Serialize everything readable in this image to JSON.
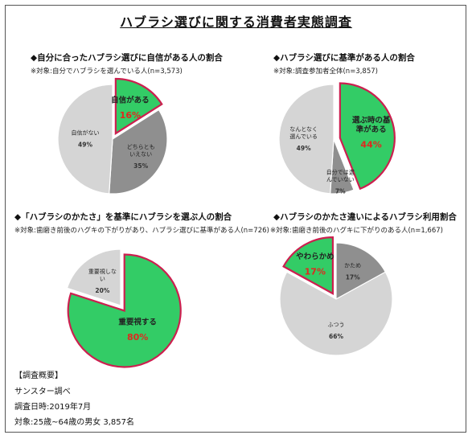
{
  "title": "ハブラシ選びに関する消費者実態調査",
  "colors": {
    "highlight": "#33cc66",
    "highlight_border": "#cc1f4f",
    "dark": "#8f8f8f",
    "light": "#d5d5d5",
    "pct_red": "#e0281f"
  },
  "chart_data": [
    {
      "type": "pie",
      "title": "◆自分に合ったハブラシ選びに自信がある人の割合",
      "subtitle": "※対象:自分でハブラシを選んでいる人(n=3,573)",
      "slices": [
        {
          "label": "自信がある",
          "value": 16,
          "pct": "16%",
          "kind": "highlight"
        },
        {
          "label": "どちらともいえない",
          "value": 35,
          "pct": "35%",
          "kind": "dark"
        },
        {
          "label": "自信がない",
          "value": 49,
          "pct": "49%",
          "kind": "light"
        }
      ]
    },
    {
      "type": "pie",
      "title": "◆ハブラシ選びに基準がある人の割合",
      "subtitle": "※対象:調査参加者全体(n=3,857)",
      "slices": [
        {
          "label": "選ぶ時の基準がある",
          "value": 44,
          "pct": "44%",
          "kind": "highlight"
        },
        {
          "label": "自分では選んでいない",
          "value": 7,
          "pct": "7%",
          "kind": "dark"
        },
        {
          "label": "なんとなく選んでいる",
          "value": 49,
          "pct": "49%",
          "kind": "light"
        }
      ]
    },
    {
      "type": "pie",
      "title": "◆「ハブラシのかたさ」を基準にハブラシを選ぶ人の割合",
      "subtitle": "※対象:歯磨き前後のハグキの下がりがあり、ハブラシ選びに基準がある人(n=726)",
      "slices": [
        {
          "label": "重要視する",
          "value": 80,
          "pct": "80%",
          "kind": "highlight"
        },
        {
          "label": "重要視しない",
          "value": 20,
          "pct": "20%",
          "kind": "light"
        }
      ]
    },
    {
      "type": "pie",
      "title": "◆ハブラシのかたさ違いによるハブラシ利用割合",
      "subtitle": "※対象:歯磨き前後のハグキに下がりのある人(n=1,667)",
      "slices": [
        {
          "label": "かため",
          "value": 17,
          "pct": "17%",
          "kind": "dark"
        },
        {
          "label": "ふつう",
          "value": 66,
          "pct": "66%",
          "kind": "light"
        },
        {
          "label": "やわらかめ",
          "value": 17,
          "pct": "17%",
          "kind": "highlight"
        }
      ]
    }
  ],
  "footer": {
    "heading": "【調査概要】",
    "lines": [
      "サンスター調べ",
      "調査日時:2019年7月",
      "対象:25歳~64歳の男女 3,857名"
    ]
  }
}
